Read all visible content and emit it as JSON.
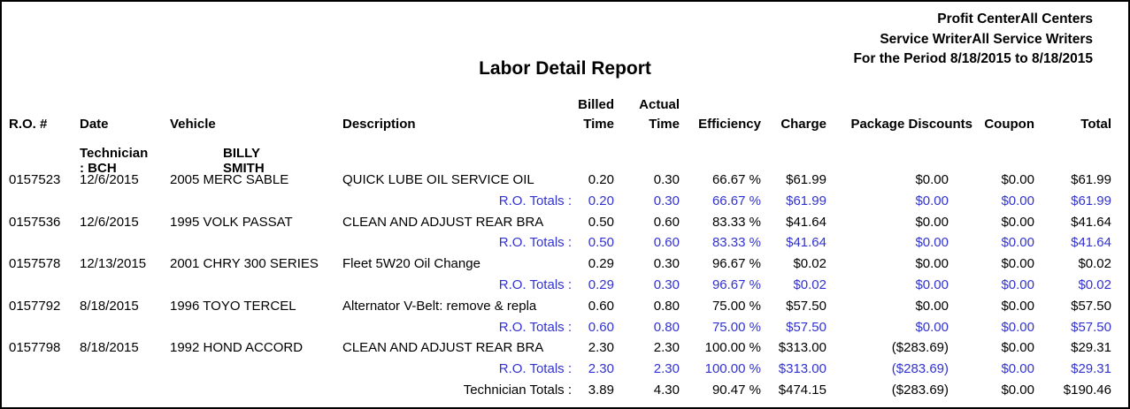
{
  "header": {
    "profit_center": "Profit CenterAll Centers",
    "service_writer": "Service WriterAll Service Writers",
    "period": "For the Period 8/18/2015 to 8/18/2015",
    "title": "Labor Detail Report"
  },
  "columns": {
    "ro": "R.O. #",
    "date": "Date",
    "vehicle": "Vehicle",
    "description": "Description",
    "billed_top": "Billed",
    "actual_top": "Actual",
    "time": "Time",
    "efficiency": "Efficiency",
    "charge": "Charge",
    "package_discounts": "Package Discounts",
    "coupon": "Coupon",
    "total": "Total"
  },
  "labels": {
    "ro_totals": "R.O. Totals :",
    "technician_totals": "Technician Totals :"
  },
  "technician": {
    "label": "Technician : BCH",
    "name": "BILLY SMITH"
  },
  "rows": [
    {
      "ro": "0157523",
      "date": "12/6/2015",
      "vehicle": "2005 MERC SABLE",
      "description": "QUICK LUBE OIL SERVICE OIL",
      "billed": "0.20",
      "actual": "0.30",
      "efficiency": "66.67 %",
      "charge": "$61.99",
      "package_discounts": "$0.00",
      "coupon": "$0.00",
      "total": "$61.99",
      "totals": {
        "billed": "0.20",
        "actual": "0.30",
        "efficiency": "66.67 %",
        "charge": "$61.99",
        "package_discounts": "$0.00",
        "coupon": "$0.00",
        "total": "$61.99"
      }
    },
    {
      "ro": "0157536",
      "date": "12/6/2015",
      "vehicle": "1995 VOLK PASSAT",
      "description": "CLEAN AND ADJUST REAR BRA",
      "billed": "0.50",
      "actual": "0.60",
      "efficiency": "83.33 %",
      "charge": "$41.64",
      "package_discounts": "$0.00",
      "coupon": "$0.00",
      "total": "$41.64",
      "totals": {
        "billed": "0.50",
        "actual": "0.60",
        "efficiency": "83.33 %",
        "charge": "$41.64",
        "package_discounts": "$0.00",
        "coupon": "$0.00",
        "total": "$41.64"
      }
    },
    {
      "ro": "0157578",
      "date": "12/13/2015",
      "vehicle": "2001 CHRY 300 SERIES",
      "description": "Fleet 5W20 Oil Change",
      "billed": "0.29",
      "actual": "0.30",
      "efficiency": "96.67 %",
      "charge": "$0.02",
      "package_discounts": "$0.00",
      "coupon": "$0.00",
      "total": "$0.02",
      "totals": {
        "billed": "0.29",
        "actual": "0.30",
        "efficiency": "96.67 %",
        "charge": "$0.02",
        "package_discounts": "$0.00",
        "coupon": "$0.00",
        "total": "$0.02"
      }
    },
    {
      "ro": "0157792",
      "date": "8/18/2015",
      "vehicle": "1996 TOYO TERCEL",
      "description": "Alternator V-Belt: remove & repla",
      "billed": "0.60",
      "actual": "0.80",
      "efficiency": "75.00 %",
      "charge": "$57.50",
      "package_discounts": "$0.00",
      "coupon": "$0.00",
      "total": "$57.50",
      "totals": {
        "billed": "0.60",
        "actual": "0.80",
        "efficiency": "75.00 %",
        "charge": "$57.50",
        "package_discounts": "$0.00",
        "coupon": "$0.00",
        "total": "$57.50"
      }
    },
    {
      "ro": "0157798",
      "date": "8/18/2015",
      "vehicle": "1992 HOND ACCORD",
      "description": "CLEAN AND ADJUST REAR BRA",
      "billed": "2.30",
      "actual": "2.30",
      "efficiency": "100.00 %",
      "charge": "$313.00",
      "package_discounts": "($283.69)",
      "coupon": "$0.00",
      "total": "$29.31",
      "totals": {
        "billed": "2.30",
        "actual": "2.30",
        "efficiency": "100.00 %",
        "charge": "$313.00",
        "package_discounts": "($283.69)",
        "coupon": "$0.00",
        "total": "$29.31"
      }
    }
  ],
  "technician_totals": {
    "billed": "3.89",
    "actual": "4.30",
    "efficiency": "90.47 %",
    "charge": "$474.15",
    "package_discounts": "($283.69)",
    "coupon": "$0.00",
    "total": "$190.46"
  },
  "colors": {
    "accent_blue": "#3232D2",
    "text": "#000000",
    "page_border": "#000000"
  }
}
